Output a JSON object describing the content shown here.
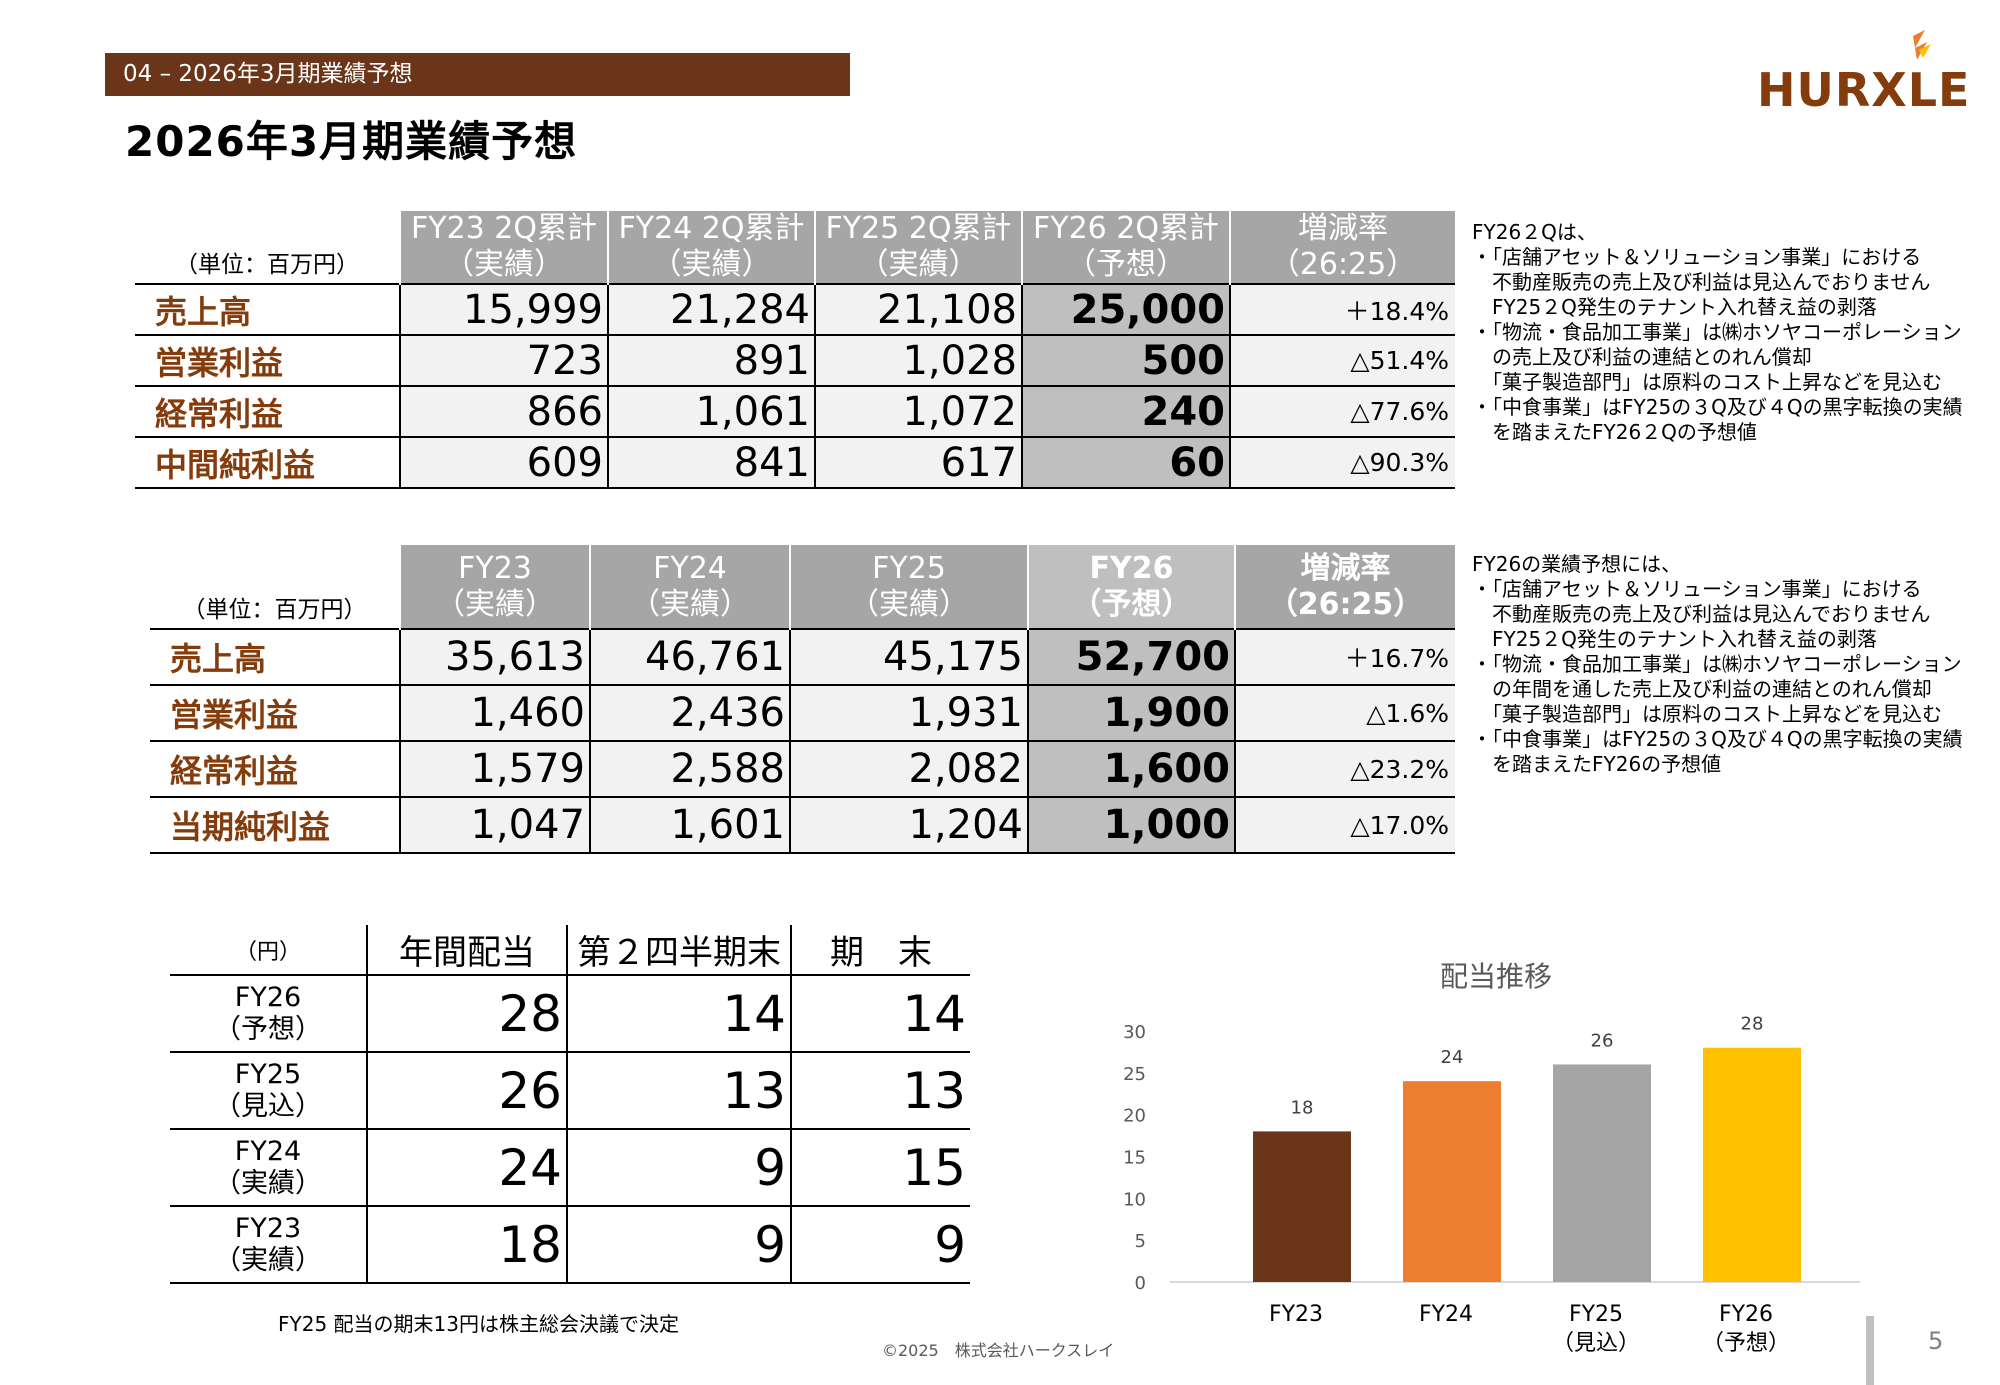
{
  "header": {
    "section": "04 – 2026年3月期業績予想",
    "title": "2026年3月期業績予想",
    "logo_text": "HURXLEY"
  },
  "table_2q": {
    "unit": "（単位：百万円）",
    "columns": [
      {
        "line1": "FY23 2Q累計",
        "line2": "（実績）"
      },
      {
        "line1": "FY24 2Q累計",
        "line2": "（実績）"
      },
      {
        "line1": "FY25 2Q累計",
        "line2": "（実績）"
      },
      {
        "line1": "FY26 2Q累計",
        "line2": "（予想）"
      },
      {
        "line1": "増減率",
        "line2": "（26:25）"
      }
    ],
    "rows": [
      {
        "label": "売上高",
        "values": [
          "15,999",
          "21,284",
          "21,108",
          "25,000"
        ],
        "rate": "＋18.4%"
      },
      {
        "label": "営業利益",
        "values": [
          "723",
          "891",
          "1,028",
          "500"
        ],
        "rate": "△51.4%"
      },
      {
        "label": "経常利益",
        "values": [
          "866",
          "1,061",
          "1,072",
          "240"
        ],
        "rate": "△77.6%"
      },
      {
        "label": "中間純利益",
        "values": [
          "609",
          "841",
          "617",
          "60"
        ],
        "rate": "△90.3%"
      }
    ]
  },
  "notes_2q": "FY26２Qは、\n・「店舗アセット＆ソリューション事業」における\n　不動産販売の売上及び利益は見込んでおりません\n　FY25２Q発生のテナント入れ替え益の剥落\n・「物流・食品加工事業」は㈱ホソヤコーポレーション\n　の売上及び利益の連結とのれん償却\n　「菓子製造部門」は原料のコスト上昇などを見込む\n・「中食事業」はFY25の３Q及び４Qの黒字転換の実績\n　を踏まえたFY26２Qの予想値",
  "table_fy": {
    "unit": "（単位：百万円）",
    "columns": [
      {
        "line1": "FY23",
        "line2": "（実績）"
      },
      {
        "line1": "FY24",
        "line2": "（実績）"
      },
      {
        "line1": "FY25",
        "line2": "（実績）"
      },
      {
        "line1": "FY26",
        "line2": "（予想）"
      },
      {
        "line1": "増減率",
        "line2": "（26:25）"
      }
    ],
    "rows": [
      {
        "label": "売上高",
        "values": [
          "35,613",
          "46,761",
          "45,175",
          "52,700"
        ],
        "rate": "＋16.7%"
      },
      {
        "label": "営業利益",
        "values": [
          "1,460",
          "2,436",
          "1,931",
          "1,900"
        ],
        "rate": "△1.6%"
      },
      {
        "label": "経常利益",
        "values": [
          "1,579",
          "2,588",
          "2,082",
          "1,600"
        ],
        "rate": "△23.2%"
      },
      {
        "label": "当期純利益",
        "values": [
          "1,047",
          "1,601",
          "1,204",
          "1,000"
        ],
        "rate": "△17.0%"
      }
    ]
  },
  "notes_fy": "FY26の業績予想には、\n・「店舗アセット＆ソリューション事業」における\n　不動産販売の売上及び利益は見込んでおりません\n　FY25２Q発生のテナント入れ替え益の剥落\n・「物流・食品加工事業」は㈱ホソヤコーポレーション\n　の年間を通した売上及び利益の連結とのれん償却\n　「菓子製造部門」は原料のコスト上昇などを見込む\n・「中食事業」はFY25の３Q及び４Qの黒字転換の実績\n　を踏まえたFY26の予想値",
  "dividend_table": {
    "unit": "（円）",
    "headers": [
      "年間配当",
      "第２四半期末",
      "期　末"
    ],
    "rows": [
      {
        "line1": "FY26",
        "line2": "（予想）",
        "values": [
          "28",
          "14",
          "14"
        ]
      },
      {
        "line1": "FY25",
        "line2": "（見込）",
        "values": [
          "26",
          "13",
          "13"
        ]
      },
      {
        "line1": "FY24",
        "line2": "（実績）",
        "values": [
          "24",
          "9",
          "15"
        ]
      },
      {
        "line1": "FY23",
        "line2": "（実績）",
        "values": [
          "18",
          "9",
          "9"
        ]
      }
    ]
  },
  "chart_data": {
    "type": "bar",
    "title": "配当推移",
    "categories": [
      {
        "line1": "FY23",
        "line2": ""
      },
      {
        "line1": "FY24",
        "line2": ""
      },
      {
        "line1": "FY25",
        "line2": "（見込）"
      },
      {
        "line1": "FY26",
        "line2": "（予想）"
      }
    ],
    "values": [
      18,
      24,
      26,
      28
    ],
    "colors": [
      "#6b3519",
      "#ed7d31",
      "#a5a5a5",
      "#ffc000"
    ],
    "ylim": [
      0,
      30
    ],
    "yticks": [
      0,
      5,
      10,
      15,
      20,
      25,
      30
    ],
    "grid": false,
    "legend": "none"
  },
  "footer": {
    "footnote": "FY25 配当の期末13円は株主総会決議で決定",
    "copyright": "©2025　株式会社ハークスレイ",
    "page_number": "5"
  }
}
